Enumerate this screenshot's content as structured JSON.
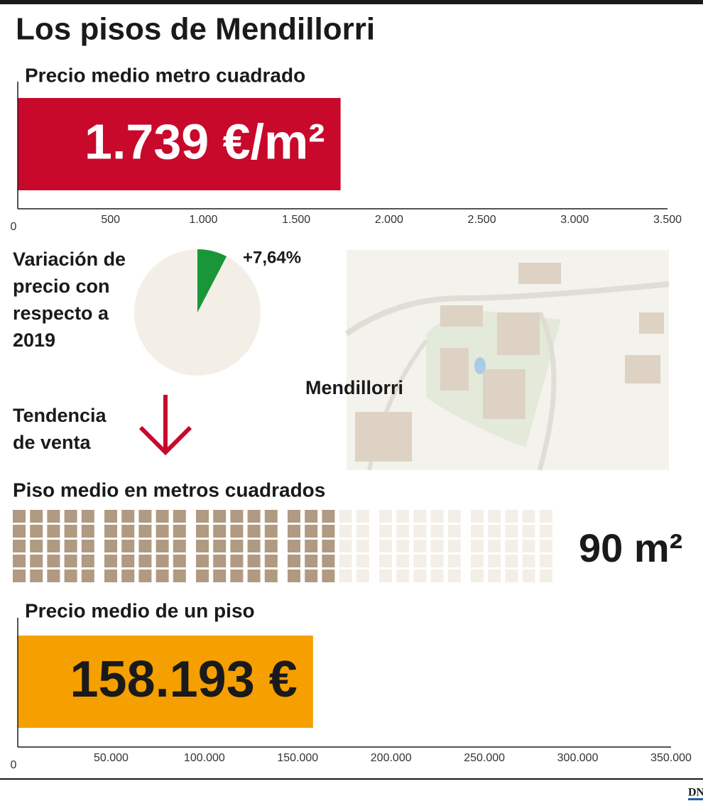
{
  "title": "Los pisos de Mendillorri",
  "trend": {
    "label": "Tendencia de venta"
  },
  "map": {
    "label": "Mendillorri"
  },
  "source": "DN",
  "chart_data": [
    {
      "type": "hbar",
      "title": "Precio medio metro cuadrado",
      "values": [
        1739
      ],
      "value_labels": [
        "1.739 €/m²"
      ],
      "color": "#c8092b",
      "label_color": "#ffffff",
      "xlim": [
        0,
        3500
      ],
      "xticks": [
        0,
        500,
        {
          "value": 1000,
          "label": "1.000"
        },
        {
          "value": 1500,
          "label": "1.500"
        },
        {
          "value": 2000,
          "label": "2.000"
        },
        {
          "value": 2500,
          "label": "2.500"
        },
        {
          "value": 3000,
          "label": "3.000"
        },
        {
          "value": 3500,
          "label": "3.500"
        }
      ]
    },
    {
      "type": "pie",
      "title": "Variación de precio con respecto a 2019",
      "values": [
        7.64
      ],
      "value_labels": [
        "+7,64%"
      ],
      "color": "#1a9639"
    },
    {
      "type": "waffle",
      "title": "Piso medio en metros cuadrados",
      "values": [
        90
      ],
      "value_labels": [
        "90 m²"
      ],
      "total": 150,
      "color": "#b09a82"
    },
    {
      "type": "hbar",
      "title": "Precio medio de un piso",
      "values": [
        158193
      ],
      "value_labels": [
        "158.193 €"
      ],
      "color": "#f5a000",
      "label_color": "#1a1a1a",
      "xlim": [
        0,
        350000
      ],
      "xticks": [
        0,
        {
          "value": 50000,
          "label": "50.000"
        },
        {
          "value": 100000,
          "label": "100.000"
        },
        {
          "value": 150000,
          "label": "150.000"
        },
        {
          "value": 200000,
          "label": "200.000"
        },
        {
          "value": 250000,
          "label": "250.000"
        },
        {
          "value": 300000,
          "label": "300.000"
        },
        {
          "value": 350000,
          "label": "350.000"
        }
      ]
    }
  ]
}
